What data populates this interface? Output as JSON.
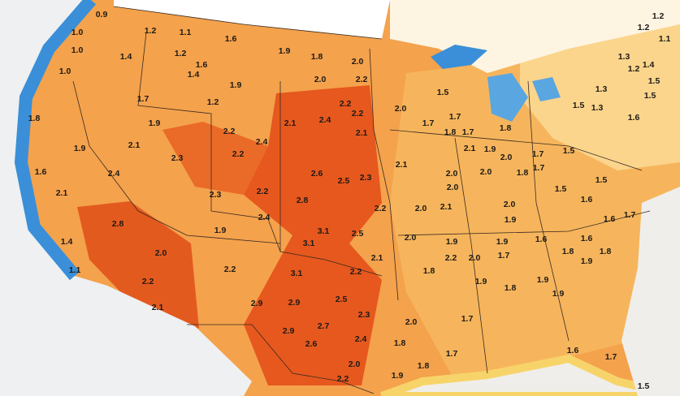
{
  "map": {
    "labels": [
      "0.9",
      "1.0",
      "1.0",
      "1.0",
      "1.2",
      "1.1",
      "1.2",
      "1.4",
      "1.6",
      "1.9",
      "1.6",
      "1.4",
      "1.8",
      "2.0",
      "2.0",
      "2.2",
      "1.9",
      "1.7",
      "1.2",
      "1.8",
      "1.9",
      "2.1",
      "2.4",
      "2.2",
      "2.2",
      "2.1",
      "2.0",
      "1.5",
      "1.7",
      "1.7",
      "1.8",
      "1.7",
      "1.8",
      "2.2",
      "2.4",
      "2.2",
      "2.1",
      "2.3",
      "1.9",
      "1.6",
      "2.4",
      "2.1",
      "2.6",
      "2.5",
      "2.3",
      "2.1",
      "2.1",
      "1.9",
      "2.0",
      "1.7",
      "1.5",
      "2.0",
      "2.0",
      "2.0",
      "1.8",
      "1.7",
      "1.5",
      "1.5",
      "2.3",
      "2.2",
      "2.4",
      "2.8",
      "2.2",
      "2.0",
      "2.1",
      "2.0",
      "1.6",
      "1.6",
      "1.7",
      "1.9",
      "2.8",
      "1.4",
      "1.9",
      "3.1",
      "2.5",
      "3.1",
      "2.0",
      "1.9",
      "1.9",
      "1.7",
      "1.6",
      "1.6",
      "1.8",
      "1.8",
      "1.9",
      "2.0",
      "2.1",
      "2.2",
      "2.0",
      "1.1",
      "2.2",
      "3.1",
      "2.2",
      "1.8",
      "1.9",
      "1.8",
      "1.9",
      "1.9",
      "2.2",
      "2.5",
      "2.9",
      "2.9",
      "1.7",
      "2.3",
      "2.1",
      "2.7",
      "1.8",
      "2.0",
      "2.9",
      "2.4",
      "2.6",
      "1.7",
      "1.6",
      "1.7",
      "2.0",
      "1.8",
      "1.9",
      "2.2",
      "1.5",
      "1.2",
      "1.2",
      "1.1",
      "1.3",
      "1.4",
      "1.2",
      "1.5",
      "1.3",
      "1.5",
      "1.3",
      "1.5",
      "1.6"
    ]
  }
}
